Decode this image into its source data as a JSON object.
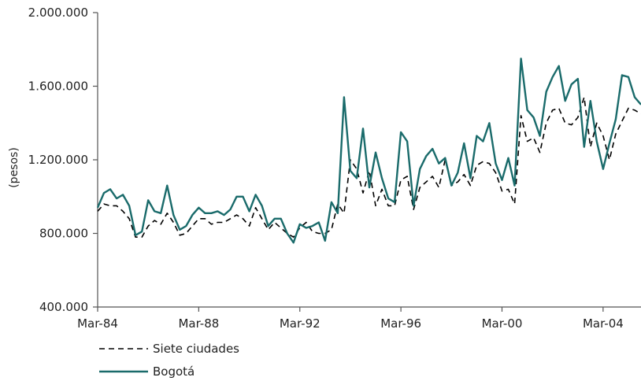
{
  "chart_data": {
    "type": "line",
    "title": "",
    "xlabel": "",
    "ylabel": "(pesos)",
    "ylim": [
      400000,
      2000000
    ],
    "yticks": [
      400000,
      800000,
      1200000,
      1600000,
      2000000
    ],
    "ytick_labels": [
      "400.000",
      "800.000",
      "1.200.000",
      "1.600.000",
      "2.000.000"
    ],
    "xlim": [
      1984.0,
      2005.5
    ],
    "xticks": [
      1984,
      1988,
      1992,
      1996,
      2000,
      2004
    ],
    "xtick_labels": [
      "Mar-84",
      "Mar-88",
      "Mar-92",
      "Mar-96",
      "Mar-00",
      "Mar-04"
    ],
    "grid": false,
    "legend": "bottom-left",
    "series": [
      {
        "name": "Siete ciudades",
        "style": "dashed",
        "color": "#000000",
        "x": [
          1984.0,
          1984.25,
          1984.5,
          1984.75,
          1985.0,
          1985.25,
          1985.5,
          1985.75,
          1986.0,
          1986.25,
          1986.5,
          1986.75,
          1987.0,
          1987.25,
          1987.5,
          1987.75,
          1988.0,
          1988.25,
          1988.5,
          1988.75,
          1989.0,
          1989.25,
          1989.5,
          1989.75,
          1990.0,
          1990.25,
          1990.5,
          1990.75,
          1991.0,
          1991.25,
          1991.5,
          1991.75,
          1992.0,
          1992.25,
          1992.5,
          1992.75,
          1993.0,
          1993.25,
          1993.5,
          1993.75,
          1994.0,
          1994.25,
          1994.5,
          1994.75,
          1995.0,
          1995.25,
          1995.5,
          1995.75,
          1996.0,
          1996.25,
          1996.5,
          1996.75,
          1997.0,
          1997.25,
          1997.5,
          1997.75,
          1998.0,
          1998.25,
          1998.5,
          1998.75,
          1999.0,
          1999.25,
          1999.5,
          1999.75,
          2000.0,
          2000.25,
          2000.5,
          2000.75,
          2001.0,
          2001.25,
          2001.5,
          2001.75,
          2002.0,
          2002.25,
          2002.5,
          2002.75,
          2003.0,
          2003.25,
          2003.5,
          2003.75,
          2004.0,
          2004.25,
          2004.5,
          2004.75,
          2005.0,
          2005.25,
          2005.5
        ],
        "values": [
          920000,
          960000,
          950000,
          950000,
          920000,
          880000,
          780000,
          780000,
          840000,
          870000,
          850000,
          910000,
          860000,
          790000,
          800000,
          840000,
          880000,
          880000,
          850000,
          860000,
          860000,
          880000,
          900000,
          880000,
          840000,
          940000,
          880000,
          820000,
          860000,
          830000,
          800000,
          780000,
          830000,
          860000,
          810000,
          800000,
          800000,
          820000,
          960000,
          910000,
          1200000,
          1150000,
          1020000,
          1140000,
          950000,
          1040000,
          950000,
          950000,
          1090000,
          1110000,
          930000,
          1050000,
          1080000,
          1110000,
          1050000,
          1200000,
          1060000,
          1080000,
          1120000,
          1060000,
          1170000,
          1190000,
          1180000,
          1130000,
          1030000,
          1040000,
          960000,
          1440000,
          1300000,
          1320000,
          1240000,
          1400000,
          1470000,
          1480000,
          1400000,
          1390000,
          1430000,
          1540000,
          1270000,
          1400000,
          1330000,
          1200000,
          1340000,
          1410000,
          1480000,
          1470000,
          1450000
        ]
      },
      {
        "name": "Bogotá",
        "style": "solid",
        "color": "#1a6b6b",
        "x": [
          1984.0,
          1984.25,
          1984.5,
          1984.75,
          1985.0,
          1985.25,
          1985.5,
          1985.75,
          1986.0,
          1986.25,
          1986.5,
          1986.75,
          1987.0,
          1987.25,
          1987.5,
          1987.75,
          1988.0,
          1988.25,
          1988.5,
          1988.75,
          1989.0,
          1989.25,
          1989.5,
          1989.75,
          1990.0,
          1990.25,
          1990.5,
          1990.75,
          1991.0,
          1991.25,
          1991.5,
          1991.75,
          1992.0,
          1992.25,
          1992.5,
          1992.75,
          1993.0,
          1993.25,
          1993.5,
          1993.75,
          1994.0,
          1994.25,
          1994.5,
          1994.75,
          1995.0,
          1995.25,
          1995.5,
          1995.75,
          1996.0,
          1996.25,
          1996.5,
          1996.75,
          1997.0,
          1997.25,
          1997.5,
          1997.75,
          1998.0,
          1998.25,
          1998.5,
          1998.75,
          1999.0,
          1999.25,
          1999.5,
          1999.75,
          2000.0,
          2000.25,
          2000.5,
          2000.75,
          2001.0,
          2001.25,
          2001.5,
          2001.75,
          2002.0,
          2002.25,
          2002.5,
          2002.75,
          2003.0,
          2003.25,
          2003.5,
          2003.75,
          2004.0,
          2004.25,
          2004.5,
          2004.75,
          2005.0,
          2005.25,
          2005.5
        ],
        "values": [
          940000,
          1020000,
          1040000,
          990000,
          1010000,
          950000,
          790000,
          810000,
          980000,
          920000,
          910000,
          1060000,
          900000,
          820000,
          840000,
          900000,
          940000,
          910000,
          910000,
          920000,
          900000,
          930000,
          1000000,
          1000000,
          920000,
          1010000,
          950000,
          840000,
          880000,
          880000,
          800000,
          750000,
          850000,
          830000,
          840000,
          860000,
          760000,
          970000,
          910000,
          1540000,
          1140000,
          1100000,
          1370000,
          1050000,
          1240000,
          1100000,
          990000,
          970000,
          1350000,
          1300000,
          950000,
          1150000,
          1220000,
          1260000,
          1180000,
          1210000,
          1060000,
          1130000,
          1290000,
          1100000,
          1330000,
          1300000,
          1400000,
          1180000,
          1090000,
          1210000,
          1060000,
          1750000,
          1470000,
          1430000,
          1330000,
          1570000,
          1650000,
          1710000,
          1520000,
          1610000,
          1640000,
          1270000,
          1520000,
          1300000,
          1150000,
          1290000,
          1420000,
          1660000,
          1650000,
          1540000,
          1500000
        ]
      }
    ]
  }
}
